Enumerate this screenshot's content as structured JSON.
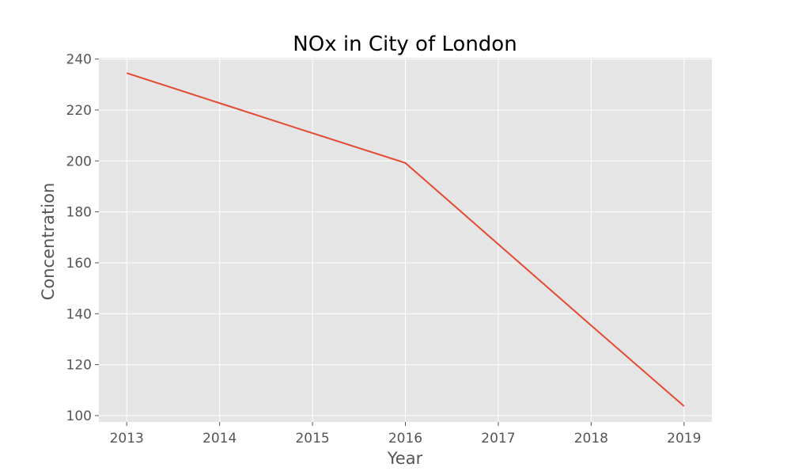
{
  "chart_data": {
    "type": "line",
    "title": "NOx in City of London",
    "xlabel": "Year",
    "ylabel": "Concentration",
    "x": [
      2013,
      2014,
      2015,
      2016,
      2017,
      2018,
      2019
    ],
    "xticks": [
      "2013",
      "2014",
      "2015",
      "2016",
      "2017",
      "2018",
      "2019"
    ],
    "yticks": [
      "100",
      "120",
      "140",
      "160",
      "180",
      "200",
      "220",
      "240"
    ],
    "xlim": [
      2012.7,
      2019.3
    ],
    "ylim": [
      97.5,
      240.5
    ],
    "series": [
      {
        "values": [
          234.5,
          222.7,
          210.9,
          199.2,
          167.3,
          135.4,
          103.7
        ],
        "color": "#E24A33"
      }
    ],
    "grid": true,
    "style": {
      "plot_background": "#E5E5E5",
      "grid_color": "#FFFFFF"
    }
  }
}
